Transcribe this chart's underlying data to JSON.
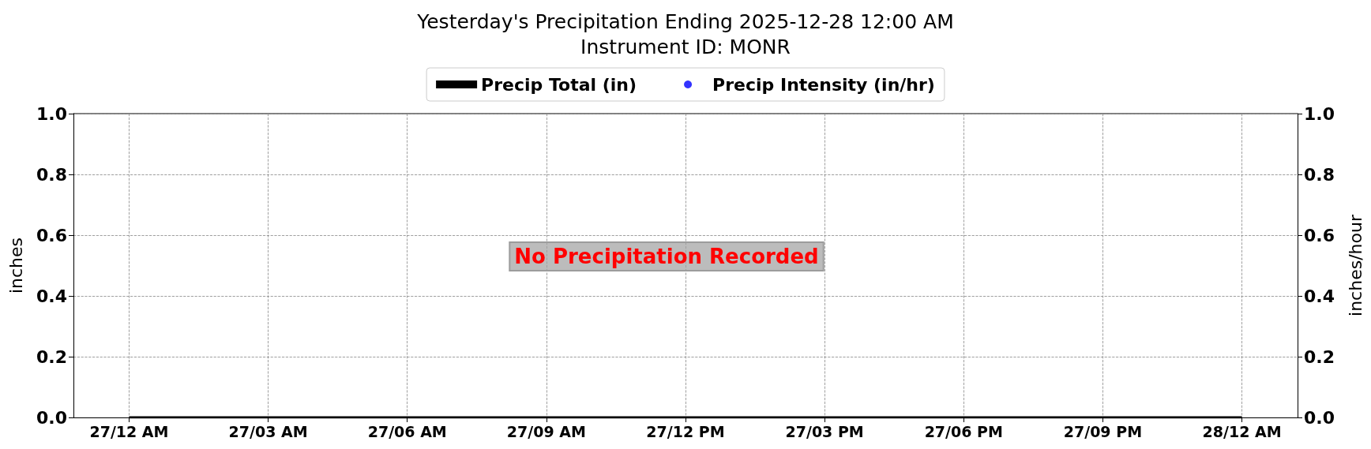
{
  "chart_data": {
    "type": "line",
    "title": "Yesterday's Precipitation Ending 2025-12-28 12:00 AM",
    "subtitle": "Instrument ID: MONR",
    "ylabel": "inches",
    "y2label": "inches/hour",
    "annotations": [
      "No Precipitation Recorded"
    ],
    "xlim": [
      "2025-12-26T22:48",
      "2025-12-28T01:12"
    ],
    "xticks": [
      {
        "value": "2025-12-27T00:00",
        "label": "27/12 AM"
      },
      {
        "value": "2025-12-27T03:00",
        "label": "27/03 AM"
      },
      {
        "value": "2025-12-27T06:00",
        "label": "27/06 AM"
      },
      {
        "value": "2025-12-27T09:00",
        "label": "27/09 AM"
      },
      {
        "value": "2025-12-27T12:00",
        "label": "27/12 PM"
      },
      {
        "value": "2025-12-27T15:00",
        "label": "27/03 PM"
      },
      {
        "value": "2025-12-27T18:00",
        "label": "27/06 PM"
      },
      {
        "value": "2025-12-27T21:00",
        "label": "27/09 PM"
      },
      {
        "value": "2025-12-28T00:00",
        "label": "28/12 AM"
      }
    ],
    "ylim": [
      0,
      1
    ],
    "yticks": [
      {
        "value": 0,
        "label": "0.0"
      },
      {
        "value": 0.2,
        "label": "0.2"
      },
      {
        "value": 0.4,
        "label": "0.4"
      },
      {
        "value": 0.6,
        "label": "0.6"
      },
      {
        "value": 0.8,
        "label": "0.8"
      },
      {
        "value": 1,
        "label": "1.0"
      }
    ],
    "y2lim": [
      0,
      1
    ],
    "y2ticks": [
      {
        "value": 0,
        "label": "0.0"
      },
      {
        "value": 0.2,
        "label": "0.2"
      },
      {
        "value": 0.4,
        "label": "0.4"
      },
      {
        "value": 0.6,
        "label": "0.6"
      },
      {
        "value": 0.8,
        "label": "0.8"
      },
      {
        "value": 1,
        "label": "1.0"
      }
    ],
    "grid": true,
    "legend": "top",
    "series": [
      {
        "name": "Precip Total (in)",
        "color": "#000000",
        "marker": "none",
        "x": [
          "2025-12-27T00:00",
          "2025-12-28T00:00"
        ],
        "values": [
          0,
          0
        ]
      },
      {
        "name": "Precip Intensity (in/hr)",
        "type": "scatter",
        "color": "#0000ff",
        "marker": "circle"
      }
    ]
  }
}
